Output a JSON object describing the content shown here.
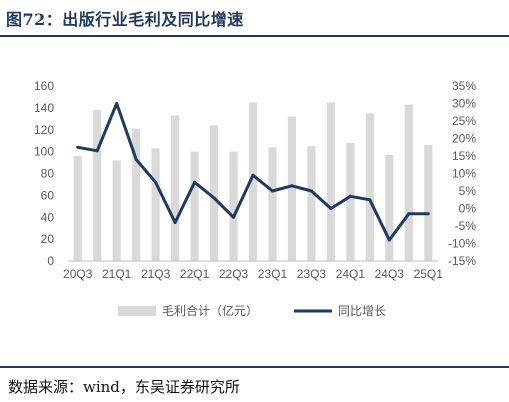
{
  "header": {
    "title": "图72：出版行业毛利及同比增速"
  },
  "footer": {
    "source": "数据来源：wind，东吴证券研究所"
  },
  "chart_data": {
    "type": "bar",
    "categories": [
      "20Q3",
      "20Q4",
      "21Q1",
      "21Q2",
      "21Q3",
      "21Q4",
      "22Q1",
      "22Q2",
      "22Q3",
      "22Q4",
      "23Q1",
      "23Q2",
      "23Q3",
      "23Q4",
      "24Q1",
      "24Q2",
      "24Q3",
      "24Q4",
      "25Q1"
    ],
    "x_tick_labels": [
      "20Q3",
      "21Q1",
      "21Q3",
      "22Q1",
      "22Q3",
      "23Q1",
      "23Q3",
      "24Q1",
      "24Q3",
      "25Q1"
    ],
    "series": [
      {
        "name": "毛利合计（亿元）",
        "type": "bar",
        "axis": "left",
        "color": "#d9d9d9",
        "values": [
          96,
          138,
          92,
          121,
          103,
          133,
          100,
          124,
          100,
          145,
          104,
          132,
          105,
          145,
          108,
          135,
          97,
          143,
          106
        ]
      },
      {
        "name": "同比增长",
        "type": "line",
        "axis": "right",
        "color": "#1f3a5f",
        "values": [
          17.5,
          16.5,
          30,
          14,
          7.5,
          -4,
          7.5,
          3,
          -2.5,
          9.5,
          5,
          6.5,
          5,
          0,
          3.5,
          2.5,
          -9,
          -1.5,
          -1.5
        ]
      }
    ],
    "y_left": {
      "min": 0,
      "max": 160,
      "ticks": [
        "0",
        "20",
        "40",
        "60",
        "80",
        "100",
        "120",
        "140",
        "160"
      ]
    },
    "y_right": {
      "min": -15,
      "max": 35,
      "ticks": [
        "-15%",
        "-10%",
        "-5%",
        "0%",
        "5%",
        "10%",
        "15%",
        "20%",
        "25%",
        "30%",
        "35%"
      ]
    },
    "legend": {
      "placement": "bottom"
    },
    "grid": false
  }
}
